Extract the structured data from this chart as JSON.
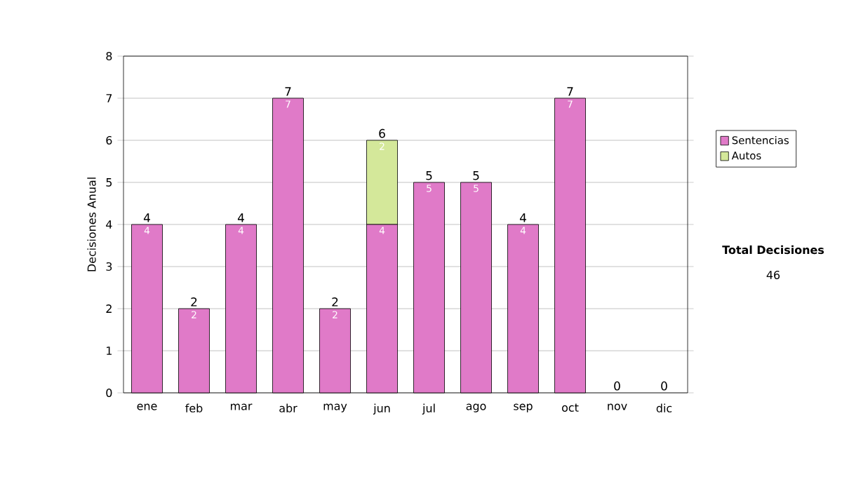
{
  "chart_data": {
    "type": "bar",
    "stacked": true,
    "ylabel": "Decisiones Anual",
    "categories": [
      "ene",
      "feb",
      "mar",
      "abr",
      "may",
      "jun",
      "jul",
      "ago",
      "sep",
      "oct",
      "nov",
      "dic"
    ],
    "series": [
      {
        "name": "Sentencias",
        "color": "#e07ac8",
        "values": [
          4,
          2,
          4,
          7,
          2,
          4,
          5,
          5,
          4,
          7,
          0,
          0
        ],
        "value_labels": [
          "4",
          "2",
          "4",
          "7",
          "2",
          "4",
          "5",
          "5",
          "4",
          "7",
          null,
          null
        ]
      },
      {
        "name": "Autos",
        "color": "#d4e89a",
        "values": [
          0,
          0,
          0,
          0,
          0,
          2,
          0,
          0,
          0,
          0,
          0,
          0
        ],
        "value_labels": [
          null,
          null,
          null,
          null,
          null,
          "2",
          null,
          null,
          null,
          null,
          null,
          null
        ]
      }
    ],
    "totals": [
      "4",
      "2",
      "4",
      "7",
      "2",
      "6",
      "5",
      "5",
      "4",
      "7",
      "0",
      "0"
    ],
    "ylim": [
      0,
      8
    ],
    "yticks": [
      0,
      1,
      2,
      3,
      4,
      5,
      6,
      7,
      8
    ],
    "grid": "y",
    "legend": "right",
    "annotations": [
      "Total Decisiones",
      "46"
    ]
  }
}
